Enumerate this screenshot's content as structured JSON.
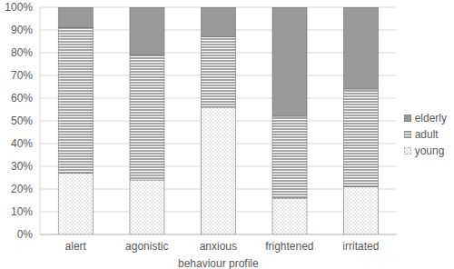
{
  "chart_data": {
    "type": "bar",
    "stacked": true,
    "x_label": "behaviour profile",
    "categories": [
      "alert",
      "agonistic",
      "anxious",
      "frightened",
      "irritated"
    ],
    "series": [
      {
        "name": "young",
        "color": "#8c8c8c",
        "values": [
          27,
          24,
          56,
          16,
          21
        ]
      },
      {
        "name": "adult",
        "color": "#4d4d4d",
        "values": [
          64,
          55,
          31,
          36,
          43
        ]
      },
      {
        "name": "elderly",
        "color": "#999999",
        "values": [
          9,
          21,
          13,
          48,
          36
        ]
      }
    ],
    "ylim": [
      0,
      100
    ],
    "yticks": [
      {
        "value": 0,
        "label": "0%"
      },
      {
        "value": 10,
        "label": "10%"
      },
      {
        "value": 20,
        "label": "20%"
      },
      {
        "value": 30,
        "label": "30%"
      },
      {
        "value": 40,
        "label": "40%"
      },
      {
        "value": 50,
        "label": "50%"
      },
      {
        "value": 60,
        "label": "60%"
      },
      {
        "value": 70,
        "label": "70%"
      },
      {
        "value": 80,
        "label": "80%"
      },
      {
        "value": 90,
        "label": "90%"
      },
      {
        "value": 100,
        "label": "100%"
      }
    ],
    "grid": true,
    "legend": "right"
  }
}
